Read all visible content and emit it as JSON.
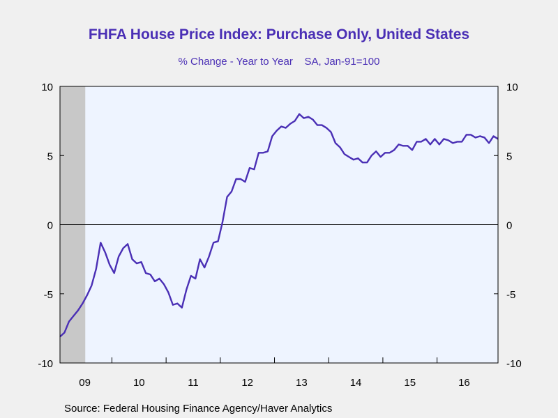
{
  "chart_data": {
    "type": "line",
    "title": "FHFA House Price Index: Purchase Only, United States",
    "subtitle": "% Change - Year to Year    SA, Jan-91=100",
    "source": "Source:  Federal Housing Finance Agency/Haver Analytics",
    "xlabel": "",
    "ylabel": "",
    "ylim": [
      -10,
      10
    ],
    "yticks": [
      10,
      5,
      0,
      -5,
      -10
    ],
    "year_labels": [
      "09",
      "10",
      "11",
      "12",
      "13",
      "14",
      "15",
      "16"
    ],
    "recession_shading": {
      "start": "2009-01",
      "end": "2009-06"
    },
    "grid": false,
    "zero_line": true,
    "colors": {
      "line": "#4a2fb5",
      "plot_bg": "#eef4ff",
      "recession": "#c8c8c8",
      "title": "#4a2fb5",
      "page_bg": "#f0f0f0"
    },
    "series": [
      {
        "x_start": "2009-01",
        "frequency": "monthly",
        "values": [
          -8.1,
          -7.8,
          -7.0,
          -6.6,
          -6.2,
          -5.7,
          -5.1,
          -4.4,
          -3.2,
          -1.3,
          -2.0,
          -2.9,
          -3.5,
          -2.3,
          -1.7,
          -1.4,
          -2.5,
          -2.8,
          -2.7,
          -3.5,
          -3.6,
          -4.1,
          -3.9,
          -4.3,
          -4.9,
          -5.8,
          -5.7,
          -6.0,
          -4.7,
          -3.7,
          -3.9,
          -2.5,
          -3.1,
          -2.3,
          -1.3,
          -1.2,
          0.2,
          2.0,
          2.4,
          3.3,
          3.3,
          3.1,
          4.1,
          4.0,
          5.2,
          5.2,
          5.3,
          6.4,
          6.8,
          7.1,
          7.0,
          7.3,
          7.5,
          8.0,
          7.7,
          7.8,
          7.6,
          7.2,
          7.2,
          7.0,
          6.7,
          5.9,
          5.6,
          5.1,
          4.9,
          4.7,
          4.8,
          4.5,
          4.5,
          5.0,
          5.3,
          4.9,
          5.2,
          5.2,
          5.4,
          5.8,
          5.7,
          5.7,
          5.4,
          6.0,
          6.0,
          6.2,
          5.8,
          6.2,
          5.8,
          6.2,
          6.1,
          5.9,
          6.0,
          6.0,
          6.5,
          6.5,
          6.3,
          6.4,
          6.3,
          5.9,
          6.4,
          6.2
        ]
      }
    ]
  }
}
